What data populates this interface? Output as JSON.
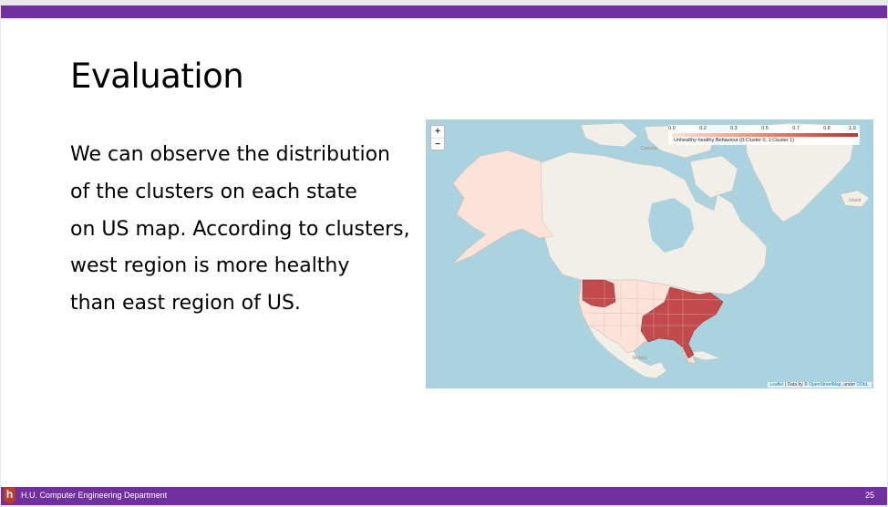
{
  "slide": {
    "title": "Evaluation",
    "body_lines": [
      "We can observe the distribution",
      "of the clusters on each state",
      "on US map. According to clusters,",
      "west region is more healthy",
      "than east region of US."
    ],
    "footer": "H.U. Computer Engineering Department",
    "page_number": "25",
    "logo_glyph": "h",
    "colors": {
      "accent": "#7030a0",
      "cluster_1": "#c24a4c",
      "cluster_0": "#fbe3da",
      "water": "#aad3df"
    }
  },
  "map": {
    "zoom_in": "+",
    "zoom_out": "−",
    "legend": {
      "ticks": [
        "0.0",
        "0.2",
        "0.3",
        "0.5",
        "0.7",
        "0.8",
        "1.0"
      ],
      "label": "Unhealthy-healthy Behaviour (0:Cluster 0, 1:Cluster 1)"
    },
    "place_labels": {
      "canada": "Canada",
      "mexico": "Mexico",
      "island": "Island"
    },
    "attribution": {
      "leaflet": "Leaflet",
      "middle": " | Data by © ",
      "osm": "OpenStreetMap",
      "suffix": ", under ",
      "license": "ODbL."
    }
  }
}
